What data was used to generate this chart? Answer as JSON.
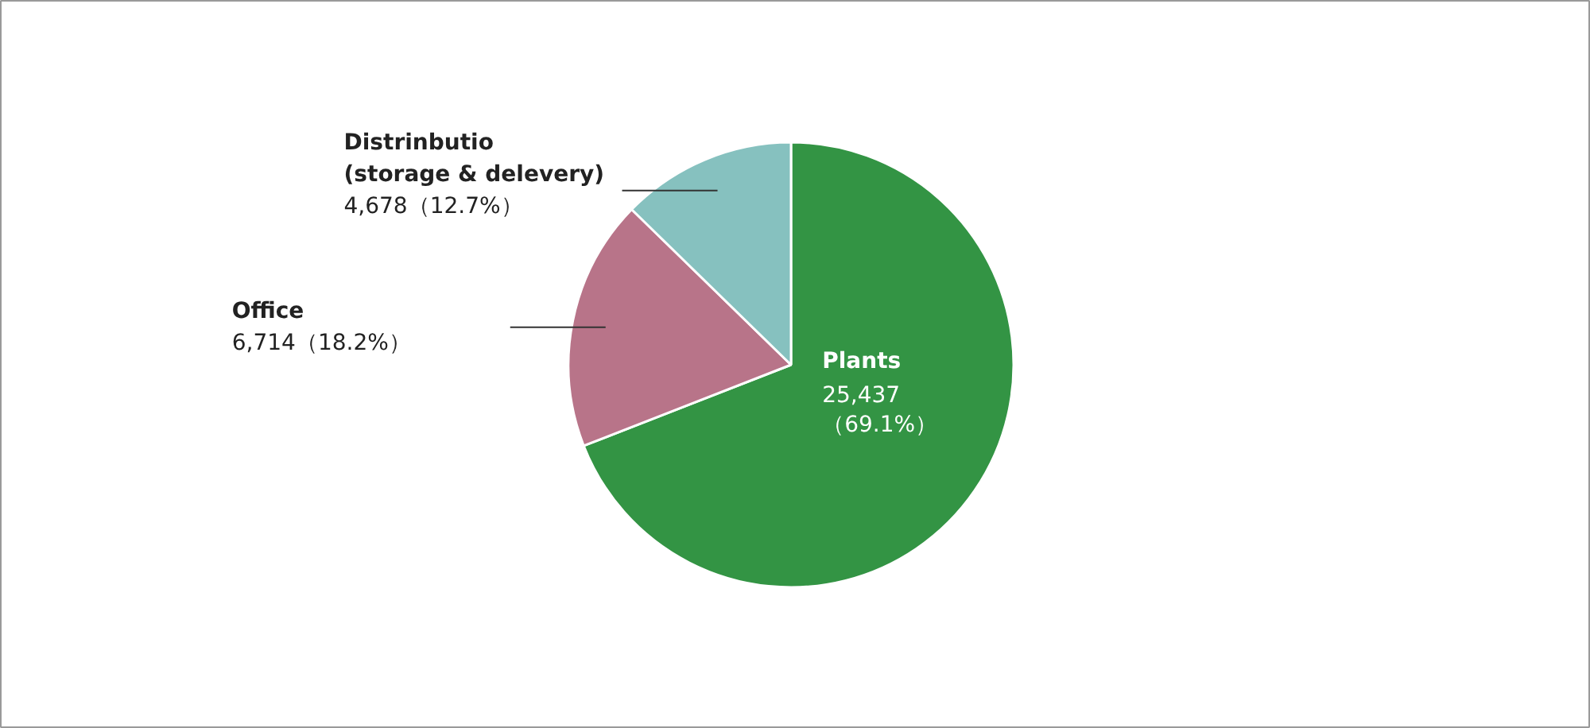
{
  "chart_data": {
    "type": "pie",
    "categories": [
      "Plants",
      "Office",
      "Distrinbutio\n(storage & delevery)"
    ],
    "values": [
      25437,
      6714,
      4678
    ],
    "colors": [
      "#339444",
      "#b87489",
      "#86c1bf"
    ],
    "value_labels": [
      "25,437\n（69.1%）",
      "6,714（18.2%）",
      "4,678（12.7%）"
    ]
  }
}
